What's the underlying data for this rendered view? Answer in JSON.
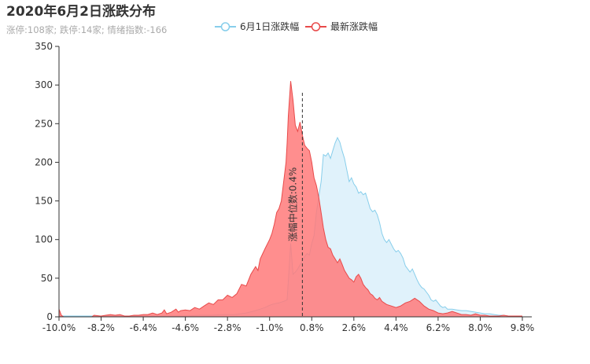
{
  "chart_data": {
    "type": "area",
    "title": "2020年6月2日涨跌分布",
    "subtitle": "涨停:108家; 跌停:14家; 情绪指数:-166",
    "xlabel": "",
    "ylabel": "",
    "xlim": [
      -10.0,
      9.8
    ],
    "ylim": [
      0,
      350
    ],
    "x_tick_labels": [
      "-10.0%",
      "-8.2%",
      "-6.4%",
      "-4.6%",
      "-2.8%",
      "-1.0%",
      "0.8%",
      "2.6%",
      "4.4%",
      "6.2%",
      "8.0%",
      "9.8%"
    ],
    "x_tick_values": [
      -10.0,
      -8.2,
      -6.4,
      -4.6,
      -2.8,
      -1.0,
      0.8,
      2.6,
      4.4,
      6.2,
      8.0,
      9.8
    ],
    "y_ticks": [
      0,
      50,
      100,
      150,
      200,
      250,
      300,
      350
    ],
    "grid": false,
    "legend_position": "top-center",
    "median_line": {
      "x": 0.4,
      "label": "涨幅中位数:0.4%"
    },
    "series": [
      {
        "name": "6月1日涨跌幅",
        "color": "#87ceeb",
        "fill": "#e0f2fb",
        "points": [
          [
            -10.0,
            1
          ],
          [
            -9.0,
            1
          ],
          [
            -8.0,
            1
          ],
          [
            -7.0,
            1
          ],
          [
            -6.0,
            1
          ],
          [
            -5.0,
            1
          ],
          [
            -4.6,
            1
          ],
          [
            -4.0,
            2
          ],
          [
            -3.5,
            2
          ],
          [
            -3.0,
            3
          ],
          [
            -2.5,
            3
          ],
          [
            -2.0,
            5
          ],
          [
            -1.6,
            8
          ],
          [
            -1.4,
            10
          ],
          [
            -1.2,
            12
          ],
          [
            -1.0,
            15
          ],
          [
            -0.8,
            17
          ],
          [
            -0.6,
            18
          ],
          [
            -0.4,
            20
          ],
          [
            -0.25,
            22
          ],
          [
            -0.1,
            95
          ],
          [
            0.0,
            55
          ],
          [
            0.1,
            58
          ],
          [
            0.2,
            62
          ],
          [
            0.35,
            70
          ],
          [
            0.5,
            78
          ],
          [
            0.6,
            82
          ],
          [
            0.7,
            80
          ],
          [
            0.8,
            95
          ],
          [
            0.9,
            105
          ],
          [
            1.0,
            135
          ],
          [
            1.1,
            155
          ],
          [
            1.2,
            175
          ],
          [
            1.3,
            210
          ],
          [
            1.4,
            208
          ],
          [
            1.5,
            212
          ],
          [
            1.6,
            205
          ],
          [
            1.7,
            215
          ],
          [
            1.8,
            225
          ],
          [
            1.9,
            232
          ],
          [
            2.0,
            226
          ],
          [
            2.1,
            215
          ],
          [
            2.2,
            205
          ],
          [
            2.3,
            190
          ],
          [
            2.4,
            175
          ],
          [
            2.5,
            180
          ],
          [
            2.6,
            172
          ],
          [
            2.7,
            168
          ],
          [
            2.8,
            160
          ],
          [
            2.9,
            162
          ],
          [
            3.0,
            158
          ],
          [
            3.1,
            160
          ],
          [
            3.2,
            150
          ],
          [
            3.3,
            140
          ],
          [
            3.4,
            136
          ],
          [
            3.5,
            138
          ],
          [
            3.6,
            132
          ],
          [
            3.7,
            122
          ],
          [
            3.8,
            108
          ],
          [
            3.9,
            100
          ],
          [
            4.0,
            96
          ],
          [
            4.1,
            100
          ],
          [
            4.2,
            94
          ],
          [
            4.3,
            88
          ],
          [
            4.4,
            84
          ],
          [
            4.5,
            86
          ],
          [
            4.6,
            82
          ],
          [
            4.7,
            76
          ],
          [
            4.8,
            66
          ],
          [
            4.9,
            62
          ],
          [
            5.0,
            58
          ],
          [
            5.1,
            62
          ],
          [
            5.2,
            55
          ],
          [
            5.3,
            48
          ],
          [
            5.4,
            42
          ],
          [
            5.5,
            38
          ],
          [
            5.6,
            36
          ],
          [
            5.7,
            32
          ],
          [
            5.8,
            28
          ],
          [
            5.9,
            22
          ],
          [
            6.0,
            20
          ],
          [
            6.1,
            22
          ],
          [
            6.2,
            18
          ],
          [
            6.3,
            14
          ],
          [
            6.4,
            12
          ],
          [
            6.5,
            13
          ],
          [
            6.6,
            10
          ],
          [
            6.8,
            10
          ],
          [
            7.0,
            9
          ],
          [
            7.2,
            8
          ],
          [
            7.4,
            8
          ],
          [
            7.6,
            7
          ],
          [
            7.8,
            6
          ],
          [
            8.0,
            5
          ],
          [
            8.2,
            4
          ],
          [
            8.4,
            4
          ],
          [
            8.6,
            3
          ],
          [
            8.8,
            2
          ],
          [
            9.0,
            2
          ],
          [
            9.2,
            1
          ],
          [
            9.4,
            1
          ],
          [
            9.6,
            1
          ],
          [
            9.8,
            1
          ]
        ]
      },
      {
        "name": "最新涨跌幅",
        "color": "#e84a4a",
        "fill": "#ff7a7a",
        "points": [
          [
            -10.0,
            10
          ],
          [
            -9.9,
            2
          ],
          [
            -9.8,
            0
          ],
          [
            -9.0,
            0
          ],
          [
            -8.6,
            0
          ],
          [
            -8.5,
            2
          ],
          [
            -8.2,
            1
          ],
          [
            -8.0,
            2
          ],
          [
            -7.8,
            3
          ],
          [
            -7.6,
            2
          ],
          [
            -7.4,
            3
          ],
          [
            -7.2,
            1
          ],
          [
            -7.0,
            1
          ],
          [
            -6.8,
            2
          ],
          [
            -6.6,
            2
          ],
          [
            -6.4,
            3
          ],
          [
            -6.2,
            3
          ],
          [
            -6.0,
            5
          ],
          [
            -5.8,
            3
          ],
          [
            -5.6,
            5
          ],
          [
            -5.5,
            9
          ],
          [
            -5.4,
            4
          ],
          [
            -5.2,
            6
          ],
          [
            -5.0,
            10
          ],
          [
            -4.9,
            6
          ],
          [
            -4.8,
            8
          ],
          [
            -4.6,
            9
          ],
          [
            -4.4,
            8
          ],
          [
            -4.2,
            12
          ],
          [
            -4.0,
            10
          ],
          [
            -3.8,
            14
          ],
          [
            -3.6,
            18
          ],
          [
            -3.4,
            16
          ],
          [
            -3.2,
            22
          ],
          [
            -3.0,
            22
          ],
          [
            -2.8,
            28
          ],
          [
            -2.6,
            25
          ],
          [
            -2.4,
            30
          ],
          [
            -2.2,
            42
          ],
          [
            -2.0,
            40
          ],
          [
            -1.8,
            55
          ],
          [
            -1.6,
            65
          ],
          [
            -1.5,
            60
          ],
          [
            -1.4,
            75
          ],
          [
            -1.2,
            88
          ],
          [
            -1.0,
            100
          ],
          [
            -0.9,
            108
          ],
          [
            -0.8,
            120
          ],
          [
            -0.7,
            135
          ],
          [
            -0.6,
            140
          ],
          [
            -0.5,
            150
          ],
          [
            -0.4,
            175
          ],
          [
            -0.3,
            200
          ],
          [
            -0.25,
            225
          ],
          [
            -0.2,
            260
          ],
          [
            -0.1,
            305
          ],
          [
            0.0,
            280
          ],
          [
            0.1,
            248
          ],
          [
            0.2,
            240
          ],
          [
            0.3,
            252
          ],
          [
            0.4,
            235
          ],
          [
            0.5,
            222
          ],
          [
            0.6,
            218
          ],
          [
            0.7,
            215
          ],
          [
            0.8,
            200
          ],
          [
            0.9,
            180
          ],
          [
            1.0,
            170
          ],
          [
            1.1,
            155
          ],
          [
            1.2,
            135
          ],
          [
            1.3,
            115
          ],
          [
            1.4,
            100
          ],
          [
            1.5,
            90
          ],
          [
            1.6,
            88
          ],
          [
            1.7,
            80
          ],
          [
            1.8,
            75
          ],
          [
            1.9,
            70
          ],
          [
            2.0,
            75
          ],
          [
            2.1,
            68
          ],
          [
            2.2,
            60
          ],
          [
            2.3,
            55
          ],
          [
            2.4,
            50
          ],
          [
            2.5,
            48
          ],
          [
            2.6,
            45
          ],
          [
            2.7,
            52
          ],
          [
            2.8,
            55
          ],
          [
            2.9,
            50
          ],
          [
            3.0,
            42
          ],
          [
            3.1,
            38
          ],
          [
            3.2,
            35
          ],
          [
            3.3,
            30
          ],
          [
            3.4,
            28
          ],
          [
            3.5,
            24
          ],
          [
            3.6,
            22
          ],
          [
            3.7,
            25
          ],
          [
            3.8,
            20
          ],
          [
            3.9,
            18
          ],
          [
            4.0,
            16
          ],
          [
            4.2,
            14
          ],
          [
            4.4,
            12
          ],
          [
            4.6,
            14
          ],
          [
            4.8,
            18
          ],
          [
            5.0,
            20
          ],
          [
            5.2,
            24
          ],
          [
            5.4,
            20
          ],
          [
            5.6,
            14
          ],
          [
            5.8,
            10
          ],
          [
            6.0,
            8
          ],
          [
            6.2,
            5
          ],
          [
            6.4,
            4
          ],
          [
            6.6,
            5
          ],
          [
            6.8,
            7
          ],
          [
            7.0,
            5
          ],
          [
            7.2,
            3
          ],
          [
            7.4,
            3
          ],
          [
            7.6,
            2
          ],
          [
            7.8,
            4
          ],
          [
            8.0,
            2
          ],
          [
            8.2,
            2
          ],
          [
            8.4,
            1
          ],
          [
            8.6,
            1
          ],
          [
            8.8,
            1
          ],
          [
            9.0,
            2
          ],
          [
            9.2,
            1
          ],
          [
            9.4,
            1
          ],
          [
            9.6,
            1
          ],
          [
            9.8,
            1
          ]
        ]
      }
    ]
  }
}
